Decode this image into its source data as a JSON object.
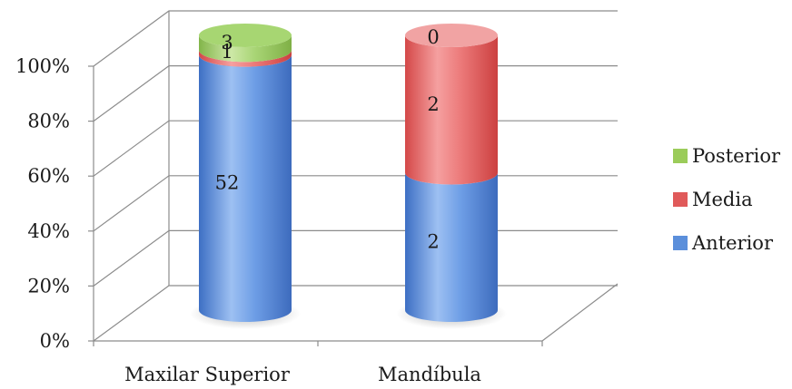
{
  "chart_data": {
    "type": "bar",
    "stacked": "percent",
    "style": "3d-cylinder",
    "categories": [
      "Maxilar Superior",
      "Mandíbula"
    ],
    "series": [
      {
        "name": "Anterior",
        "values": [
          52,
          2
        ],
        "color": "#5b8fdb"
      },
      {
        "name": "Media",
        "values": [
          1,
          2
        ],
        "color": "#e05a5a"
      },
      {
        "name": "Posterior",
        "values": [
          3,
          0
        ],
        "color": "#9bcc5a"
      }
    ],
    "ylim": [
      0,
      100
    ],
    "yticks": [
      "0%",
      "20%",
      "40%",
      "60%",
      "80%",
      "100%"
    ],
    "legend": "right",
    "grid": true
  }
}
